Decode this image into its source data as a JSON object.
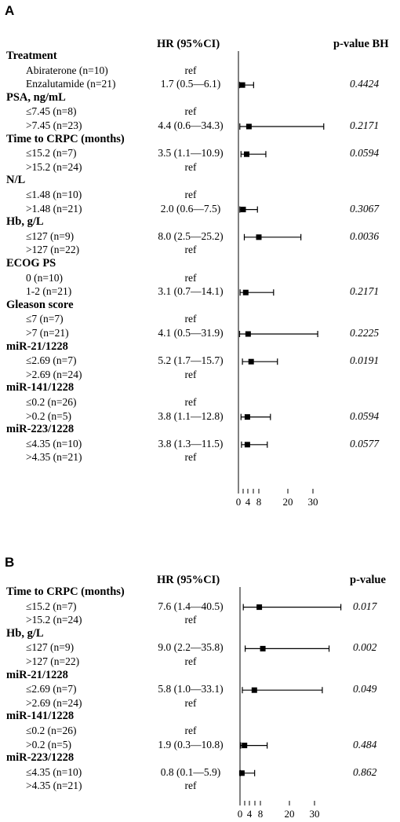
{
  "panels": [
    {
      "label": "A",
      "col_hr": "HR (95%CI)",
      "col_p": "p-value BH",
      "groups": [
        {
          "title": "Treatment",
          "rows": [
            {
              "label": "Abiraterone (n=10)",
              "hr": "ref"
            },
            {
              "label": "Enzalutamide (n=21)",
              "hr": "1.7 (0.5—6.1)",
              "p": "0.4424"
            }
          ]
        },
        {
          "title": "PSA, ng/mL",
          "rows": [
            {
              "label": "≤7.45 (n=8)",
              "hr": "ref"
            },
            {
              "label": ">7.45 (n=23)",
              "hr": "4.4 (0.6—34.3)",
              "p": "0.2171"
            }
          ]
        },
        {
          "title": "Time to CRPC (months)",
          "rows": [
            {
              "label": "≤15.2 (n=7)",
              "hr": "3.5 (1.1—10.9)",
              "p": "0.0594"
            },
            {
              "label": ">15.2 (n=24)",
              "hr": "ref"
            }
          ]
        },
        {
          "title": "N/L",
          "rows": [
            {
              "label": "≤1.48 (n=10)",
              "hr": "ref"
            },
            {
              "label": ">1.48 (n=21)",
              "hr": "2.0 (0.6—7.5)",
              "p": "0.3067"
            }
          ]
        },
        {
          "title": "Hb, g/L",
          "rows": [
            {
              "label": "≤127 (n=9)",
              "hr": "8.0 (2.5—25.2)",
              "p": "0.0036"
            },
            {
              "label": ">127 (n=22)",
              "hr": "ref"
            }
          ]
        },
        {
          "title": "ECOG PS",
          "rows": [
            {
              "label": "0 (n=10)",
              "hr": "ref"
            },
            {
              "label": "1-2 (n=21)",
              "hr": "3.1 (0.7—14.1)",
              "p": "0.2171"
            }
          ]
        },
        {
          "title": "Gleason score",
          "rows": [
            {
              "label": "≤7 (n=7)",
              "hr": "ref"
            },
            {
              "label": ">7 (n=21)",
              "hr": "4.1 (0.5—31.9)",
              "p": "0.2225"
            }
          ]
        },
        {
          "title": "miR-21/1228",
          "rows": [
            {
              "label": "≤2.69 (n=7)",
              "hr": "5.2 (1.7—15.7)",
              "p": "0.0191"
            },
            {
              "label": ">2.69 (n=24)",
              "hr": "ref"
            }
          ]
        },
        {
          "title": "miR-141/1228",
          "rows": [
            {
              "label": "≤0.2 (n=26)",
              "hr": "ref"
            },
            {
              "label": ">0.2 (n=5)",
              "hr": "3.8 (1.1—12.8)",
              "p": "0.0594"
            }
          ]
        },
        {
          "title": "miR-223/1228",
          "rows": [
            {
              "label": "≤4.35 (n=10)",
              "hr": "3.8 (1.3—11.5)",
              "p": "0.0577"
            },
            {
              "label": ">4.35 (n=21)",
              "hr": "ref"
            }
          ]
        }
      ],
      "axis_ticks": [
        "0",
        "4",
        "8",
        "20",
        "30"
      ]
    },
    {
      "label": "B",
      "col_hr": "HR (95%CI)",
      "col_p": "p-value",
      "groups": [
        {
          "title": "Time to CRPC (months)",
          "rows": [
            {
              "label": "≤15.2 (n=7)",
              "hr": "7.6 (1.4—40.5)",
              "p": "0.017"
            },
            {
              "label": ">15.2 (n=24)",
              "hr": "ref"
            }
          ]
        },
        {
          "title": "Hb, g/L",
          "rows": [
            {
              "label": "≤127 (n=9)",
              "hr": "9.0 (2.2—35.8)",
              "p": "0.002"
            },
            {
              "label": ">127 (n=22)",
              "hr": "ref"
            }
          ]
        },
        {
          "title": "miR-21/1228",
          "rows": [
            {
              "label": "≤2.69 (n=7)",
              "hr": "5.8 (1.0—33.1)",
              "p": "0.049"
            },
            {
              "label": ">2.69 (n=24)",
              "hr": "ref"
            }
          ]
        },
        {
          "title": "miR-141/1228",
          "rows": [
            {
              "label": "≤0.2 (n=26)",
              "hr": "ref"
            },
            {
              "label": ">0.2 (n=5)",
              "hr": "1.9 (0.3—10.8)",
              "p": "0.484"
            }
          ]
        },
        {
          "title": "miR-223/1228",
          "rows": [
            {
              "label": "≤4.35 (n=10)",
              "hr": "0.8 (0.1—5.9)",
              "p": "0.862"
            },
            {
              "label": ">4.35 (n=21)",
              "hr": "ref"
            }
          ]
        }
      ],
      "axis_ticks": [
        "0",
        "4",
        "8",
        "20",
        "30"
      ]
    }
  ],
  "chart_data": [
    {
      "type": "forest",
      "title": "A",
      "xlim": [
        0,
        30
      ],
      "x_ticks": [
        0,
        2,
        4,
        6,
        8,
        20,
        30
      ],
      "x_tick_labels": [
        "0",
        "4",
        "8",
        "20",
        "30"
      ],
      "reference_line": 0,
      "points": [
        {
          "category": "Enzalutamide (n=21)",
          "hr": 1.7,
          "lo": 0.5,
          "hi": 6.1,
          "p": 0.4424
        },
        {
          "category": ">7.45 (n=23)",
          "hr": 4.4,
          "lo": 0.6,
          "hi": 34.3,
          "p": 0.2171
        },
        {
          "category": "≤15.2 (n=7)",
          "hr": 3.5,
          "lo": 1.1,
          "hi": 10.9,
          "p": 0.0594
        },
        {
          "category": ">1.48 (n=21)",
          "hr": 2.0,
          "lo": 0.6,
          "hi": 7.5,
          "p": 0.3067
        },
        {
          "category": "≤127 (n=9)",
          "hr": 8.0,
          "lo": 2.5,
          "hi": 25.2,
          "p": 0.0036
        },
        {
          "category": "1-2 (n=21)",
          "hr": 3.1,
          "lo": 0.7,
          "hi": 14.1,
          "p": 0.2171
        },
        {
          "category": ">7 (n=21)",
          "hr": 4.1,
          "lo": 0.5,
          "hi": 31.9,
          "p": 0.2225
        },
        {
          "category": "≤2.69 (n=7)",
          "hr": 5.2,
          "lo": 1.7,
          "hi": 15.7,
          "p": 0.0191
        },
        {
          "category": ">0.2 (n=5)",
          "hr": 3.8,
          "lo": 1.1,
          "hi": 12.8,
          "p": 0.0594
        },
        {
          "category": "≤4.35 (n=10)",
          "hr": 3.8,
          "lo": 1.3,
          "hi": 11.5,
          "p": 0.0577
        }
      ]
    },
    {
      "type": "forest",
      "title": "B",
      "xlim": [
        0,
        30
      ],
      "x_ticks": [
        0,
        2,
        4,
        6,
        8,
        20,
        30
      ],
      "x_tick_labels": [
        "0",
        "4",
        "8",
        "20",
        "30"
      ],
      "reference_line": 0,
      "points": [
        {
          "category": "≤15.2 (n=7)",
          "hr": 7.6,
          "lo": 1.4,
          "hi": 40.5,
          "p": 0.017
        },
        {
          "category": "≤127 (n=9)",
          "hr": 9.0,
          "lo": 2.2,
          "hi": 35.8,
          "p": 0.002
        },
        {
          "category": "≤2.69 (n=7)",
          "hr": 5.8,
          "lo": 1.0,
          "hi": 33.1,
          "p": 0.049
        },
        {
          "category": ">0.2 (n=5)",
          "hr": 1.9,
          "lo": 0.3,
          "hi": 10.8,
          "p": 0.484
        },
        {
          "category": "≤4.35 (n=10)",
          "hr": 0.8,
          "lo": 0.1,
          "hi": 5.9,
          "p": 0.862
        }
      ]
    }
  ]
}
